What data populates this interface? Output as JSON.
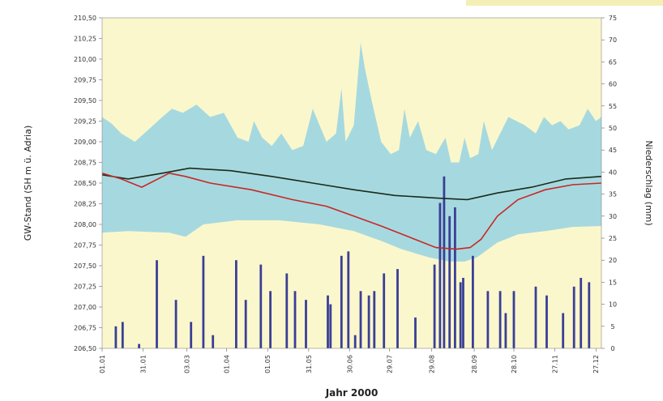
{
  "chart_data": {
    "type": "line",
    "title": "",
    "xlabel": "Jahr 2000",
    "ylabel_left": "GW-Stand (SH m ü. Adria)",
    "ylabel_right": "Niederschlag (mm)",
    "left_axis": {
      "ylim": [
        206.5,
        210.5
      ],
      "ticks": [
        206.5,
        206.75,
        207.0,
        207.25,
        207.5,
        207.75,
        208.0,
        208.25,
        208.5,
        208.75,
        209.0,
        209.25,
        209.5,
        209.75,
        210.0,
        210.25,
        210.5
      ],
      "tick_labels": [
        "206,50",
        "206,75",
        "207,00",
        "207,25",
        "207,50",
        "207,75",
        "208,00",
        "208,25",
        "208,50",
        "208,75",
        "209,00",
        "209,25",
        "209,50",
        "209,75",
        "210,00",
        "210,25",
        "210,50"
      ]
    },
    "right_axis": {
      "ylim": [
        0,
        75
      ],
      "ticks": [
        0,
        5,
        10,
        15,
        20,
        25,
        30,
        35,
        40,
        45,
        50,
        55,
        60,
        65,
        70,
        75
      ],
      "tick_labels": [
        "0",
        "5",
        "10",
        "15",
        "20",
        "25",
        "30",
        "35",
        "40",
        "45",
        "50",
        "55",
        "60",
        "65",
        "70",
        "75"
      ]
    },
    "x_axis": {
      "range_days": [
        1,
        366
      ],
      "ticks": [
        {
          "day": 1,
          "label": "01.01"
        },
        {
          "day": 31,
          "label": "31.01"
        },
        {
          "day": 63,
          "label": "03.03"
        },
        {
          "day": 92,
          "label": "01.04"
        },
        {
          "day": 122,
          "label": "01.05"
        },
        {
          "day": 152,
          "label": "31.05"
        },
        {
          "day": 182,
          "label": "30.06"
        },
        {
          "day": 211,
          "label": "29.07"
        },
        {
          "day": 242,
          "label": "29.08"
        },
        {
          "day": 273,
          "label": "28.09"
        },
        {
          "day": 302,
          "label": "28.10"
        },
        {
          "day": 332,
          "label": "27.11"
        },
        {
          "day": 362,
          "label": "27.12"
        }
      ]
    },
    "series": [
      {
        "kind": "band_max",
        "color": "#a6d9df",
        "points": [
          [
            1,
            209.3
          ],
          [
            8,
            209.22
          ],
          [
            15,
            209.1
          ],
          [
            25,
            209.0
          ],
          [
            35,
            209.15
          ],
          [
            45,
            209.3
          ],
          [
            52,
            209.4
          ],
          [
            60,
            209.35
          ],
          [
            70,
            209.45
          ],
          [
            80,
            209.3
          ],
          [
            90,
            209.35
          ],
          [
            100,
            209.05
          ],
          [
            108,
            209.0
          ],
          [
            112,
            209.25
          ],
          [
            118,
            209.05
          ],
          [
            125,
            208.95
          ],
          [
            132,
            209.1
          ],
          [
            140,
            208.9
          ],
          [
            148,
            208.95
          ],
          [
            155,
            209.4
          ],
          [
            160,
            209.2
          ],
          [
            165,
            209.0
          ],
          [
            172,
            209.1
          ],
          [
            176,
            209.65
          ],
          [
            179,
            209.0
          ],
          [
            185,
            209.2
          ],
          [
            190,
            210.2
          ],
          [
            193,
            209.9
          ],
          [
            198,
            209.5
          ],
          [
            205,
            209.0
          ],
          [
            212,
            208.85
          ],
          [
            218,
            208.9
          ],
          [
            222,
            209.4
          ],
          [
            226,
            209.05
          ],
          [
            232,
            209.25
          ],
          [
            238,
            208.9
          ],
          [
            245,
            208.85
          ],
          [
            252,
            209.05
          ],
          [
            256,
            208.75
          ],
          [
            262,
            208.75
          ],
          [
            266,
            209.05
          ],
          [
            270,
            208.8
          ],
          [
            276,
            208.85
          ],
          [
            280,
            209.25
          ],
          [
            286,
            208.9
          ],
          [
            292,
            209.1
          ],
          [
            298,
            209.3
          ],
          [
            304,
            209.25
          ],
          [
            310,
            209.2
          ],
          [
            318,
            209.1
          ],
          [
            324,
            209.3
          ],
          [
            330,
            209.2
          ],
          [
            336,
            209.25
          ],
          [
            342,
            209.15
          ],
          [
            350,
            209.2
          ],
          [
            356,
            209.4
          ],
          [
            362,
            209.25
          ],
          [
            366,
            209.3
          ]
        ]
      },
      {
        "kind": "band_min",
        "color": "#fbf7cc",
        "points": [
          [
            1,
            207.9
          ],
          [
            20,
            207.92
          ],
          [
            50,
            207.9
          ],
          [
            62,
            207.85
          ],
          [
            75,
            208.0
          ],
          [
            100,
            208.05
          ],
          [
            130,
            208.05
          ],
          [
            160,
            208.0
          ],
          [
            185,
            207.92
          ],
          [
            205,
            207.8
          ],
          [
            220,
            207.7
          ],
          [
            240,
            207.6
          ],
          [
            255,
            207.55
          ],
          [
            266,
            207.55
          ],
          [
            275,
            207.6
          ],
          [
            290,
            207.78
          ],
          [
            305,
            207.88
          ],
          [
            325,
            207.92
          ],
          [
            345,
            207.97
          ],
          [
            366,
            207.98
          ]
        ]
      },
      {
        "kind": "mean_line",
        "color": "#1d2a1d",
        "points": [
          [
            1,
            208.6
          ],
          [
            20,
            208.55
          ],
          [
            45,
            208.62
          ],
          [
            65,
            208.68
          ],
          [
            95,
            208.65
          ],
          [
            125,
            208.58
          ],
          [
            155,
            208.5
          ],
          [
            185,
            208.42
          ],
          [
            215,
            208.35
          ],
          [
            245,
            208.32
          ],
          [
            268,
            208.3
          ],
          [
            290,
            208.38
          ],
          [
            315,
            208.45
          ],
          [
            340,
            208.55
          ],
          [
            366,
            208.58
          ]
        ]
      },
      {
        "kind": "year_line",
        "name": "2000",
        "color": "#c62828",
        "points": [
          [
            1,
            208.62
          ],
          [
            15,
            208.55
          ],
          [
            30,
            208.45
          ],
          [
            50,
            208.62
          ],
          [
            62,
            208.58
          ],
          [
            80,
            208.5
          ],
          [
            110,
            208.42
          ],
          [
            140,
            208.3
          ],
          [
            165,
            208.22
          ],
          [
            185,
            208.1
          ],
          [
            205,
            207.98
          ],
          [
            225,
            207.85
          ],
          [
            245,
            207.72
          ],
          [
            260,
            207.7
          ],
          [
            270,
            207.72
          ],
          [
            278,
            207.82
          ],
          [
            290,
            208.1
          ],
          [
            305,
            208.3
          ],
          [
            325,
            208.42
          ],
          [
            345,
            208.48
          ],
          [
            366,
            208.5
          ]
        ]
      }
    ],
    "precipitation": {
      "color": "#3a3f96",
      "bars": [
        [
          11,
          5
        ],
        [
          16,
          6
        ],
        [
          28,
          1
        ],
        [
          41,
          20
        ],
        [
          55,
          11
        ],
        [
          66,
          6
        ],
        [
          75,
          21
        ],
        [
          82,
          3
        ],
        [
          99,
          20
        ],
        [
          106,
          11
        ],
        [
          117,
          19
        ],
        [
          124,
          13
        ],
        [
          136,
          17
        ],
        [
          142,
          13
        ],
        [
          150,
          11
        ],
        [
          166,
          12
        ],
        [
          168,
          10
        ],
        [
          176,
          21
        ],
        [
          181,
          22
        ],
        [
          186,
          3
        ],
        [
          190,
          13
        ],
        [
          196,
          12
        ],
        [
          200,
          13
        ],
        [
          207,
          17
        ],
        [
          217,
          18
        ],
        [
          230,
          7
        ],
        [
          244,
          19
        ],
        [
          248,
          33
        ],
        [
          251,
          39
        ],
        [
          255,
          30
        ],
        [
          259,
          32
        ],
        [
          263,
          15
        ],
        [
          265,
          16
        ],
        [
          272,
          21
        ],
        [
          283,
          13
        ],
        [
          292,
          13
        ],
        [
          296,
          8
        ],
        [
          302,
          13
        ],
        [
          318,
          14
        ],
        [
          326,
          12
        ],
        [
          338,
          8
        ],
        [
          346,
          14
        ],
        [
          351,
          16
        ],
        [
          357,
          15
        ]
      ]
    }
  }
}
